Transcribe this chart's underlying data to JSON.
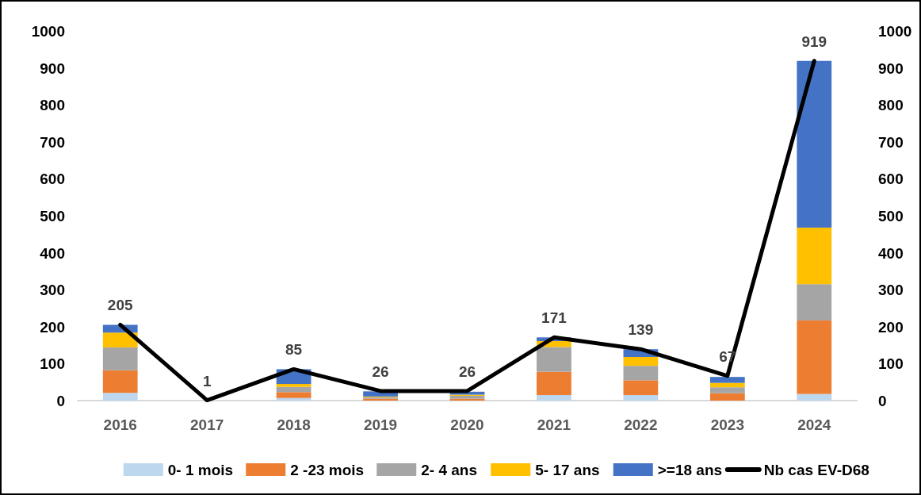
{
  "chart_data": {
    "type": "bar",
    "stacked": true,
    "categories": [
      "2016",
      "2017",
      "2018",
      "2019",
      "2020",
      "2021",
      "2022",
      "2023",
      "2024"
    ],
    "series": [
      {
        "name": "0- 1 mois",
        "color": "#bdd7ee",
        "values": [
          21,
          0,
          7,
          null,
          null,
          15,
          15,
          null,
          18
        ]
      },
      {
        "name": "2 -23 mois",
        "color": "#ed7d31",
        "values": [
          61,
          0,
          16,
          5,
          5,
          63,
          40,
          20,
          199
        ]
      },
      {
        "name": "2- 4 ans",
        "color": "#a5a5a5",
        "values": [
          62,
          0,
          14,
          4,
          8,
          67,
          39,
          16,
          98
        ]
      },
      {
        "name": "5- 17 ans",
        "color": "#ffc000",
        "values": [
          40,
          0,
          8,
          2,
          3,
          16,
          24,
          12,
          153
        ]
      },
      {
        "name": ">=18 ans",
        "color": "#4472c4",
        "values": [
          21,
          null,
          40,
          14,
          8,
          10,
          21,
          16,
          451
        ]
      },
      {
        "name": "Nb cas EV-D68",
        "type": "line",
        "color": "#000000",
        "values": [
          205,
          1,
          85,
          26,
          26,
          171,
          139,
          67,
          919
        ],
        "value_labels": [
          "205",
          "1",
          "85",
          "26",
          "26",
          "171",
          "139",
          "67",
          "919"
        ]
      }
    ],
    "ylim": [
      0,
      1000
    ],
    "yticks": [
      0,
      100,
      200,
      300,
      400,
      500,
      600,
      700,
      800,
      900,
      1000
    ],
    "y2lim": [
      0,
      1000
    ],
    "y2ticks": [
      0,
      100,
      200,
      300,
      400,
      500,
      600,
      700,
      800,
      900,
      1000
    ],
    "grid": false,
    "legend": "bottom",
    "marker": "none",
    "line_style": "solid"
  }
}
